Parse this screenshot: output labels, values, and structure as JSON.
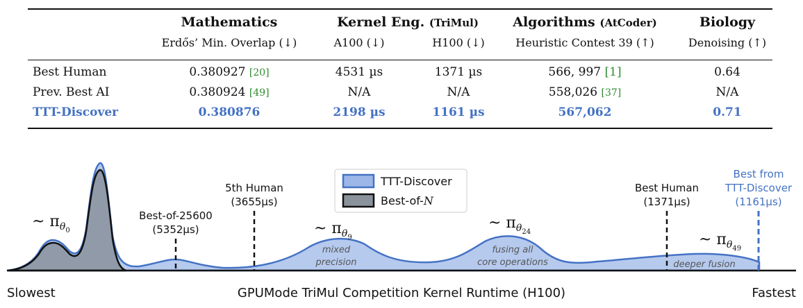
{
  "table": {
    "headers": [
      {
        "main": "Mathematics",
        "suffix": ""
      },
      {
        "main": "Kernel Eng.",
        "suffix": "(TriMul)"
      },
      {
        "main": "Algorithms",
        "suffix": "(AtCoder)"
      },
      {
        "main": "Biology",
        "suffix": ""
      }
    ],
    "subheaders": [
      "Erdős’ Min. Overlap (↓)",
      "A100 (↓)",
      "H100 (↓)",
      "Heuristic Contest 39 (↑)",
      "Denoising (↑)"
    ],
    "rows": [
      {
        "label": "Best Human",
        "cells": [
          {
            "value": "0.380927",
            "cite": "[20]"
          },
          {
            "value": "4531 µs",
            "cite": ""
          },
          {
            "value": "1371 µs",
            "cite": ""
          },
          {
            "value": "566, 997",
            "cite": "[1]"
          },
          {
            "value": "0.64",
            "cite": ""
          }
        ]
      },
      {
        "label": "Prev. Best AI",
        "cells": [
          {
            "value": "0.380924",
            "cite": "[49]"
          },
          {
            "value": "N/A",
            "cite": ""
          },
          {
            "value": "N/A",
            "cite": ""
          },
          {
            "value": "558,026",
            "cite": "[37]"
          },
          {
            "value": "N/A",
            "cite": ""
          }
        ]
      },
      {
        "label": "TTT-Discover",
        "cells": [
          {
            "value": "0.380876",
            "cite": ""
          },
          {
            "value": "2198 µs",
            "cite": ""
          },
          {
            "value": "1161 µs",
            "cite": ""
          },
          {
            "value": "567,062",
            "cite": ""
          },
          {
            "value": "0.71",
            "cite": ""
          }
        ]
      }
    ]
  },
  "figure": {
    "legend": [
      "TTT-Discover",
      "Best-of-N"
    ],
    "markers": [
      {
        "line1": "Best-of-25600",
        "line2": "(5352µs)"
      },
      {
        "line1": "5th Human",
        "line2": "(3655µs)"
      },
      {
        "line1": "Best Human",
        "line2": "(1371µs)"
      },
      {
        "line1": "Best from",
        "line2": "TTT-Discover",
        "line3": "(1161µs)"
      }
    ],
    "policies": [
      {
        "base": "~ π",
        "sub": "θ",
        "subsub": "0"
      },
      {
        "base": "~ π",
        "sub": "θ",
        "subsub": "9"
      },
      {
        "base": "~ π",
        "sub": "θ",
        "subsub": "24"
      },
      {
        "base": "~ π",
        "sub": "θ",
        "subsub": "49"
      }
    ],
    "annotations": [
      {
        "line1": "mixed",
        "line2": "precision"
      },
      {
        "line1": "fusing all",
        "line2": "core operations"
      },
      {
        "line1": "deeper fusion",
        "line2": ""
      }
    ],
    "axis": {
      "left": "Slowest",
      "center": "GPUMode TriMul Competition Kernel Runtime (H100)",
      "right": "Fastest"
    },
    "colors": {
      "ttt_line": "#4472c4",
      "ttt_fill": "#9db8e8",
      "bon_fill": "#8a929c",
      "bon_line": "#111111",
      "cite": "#2e8b2e"
    }
  }
}
